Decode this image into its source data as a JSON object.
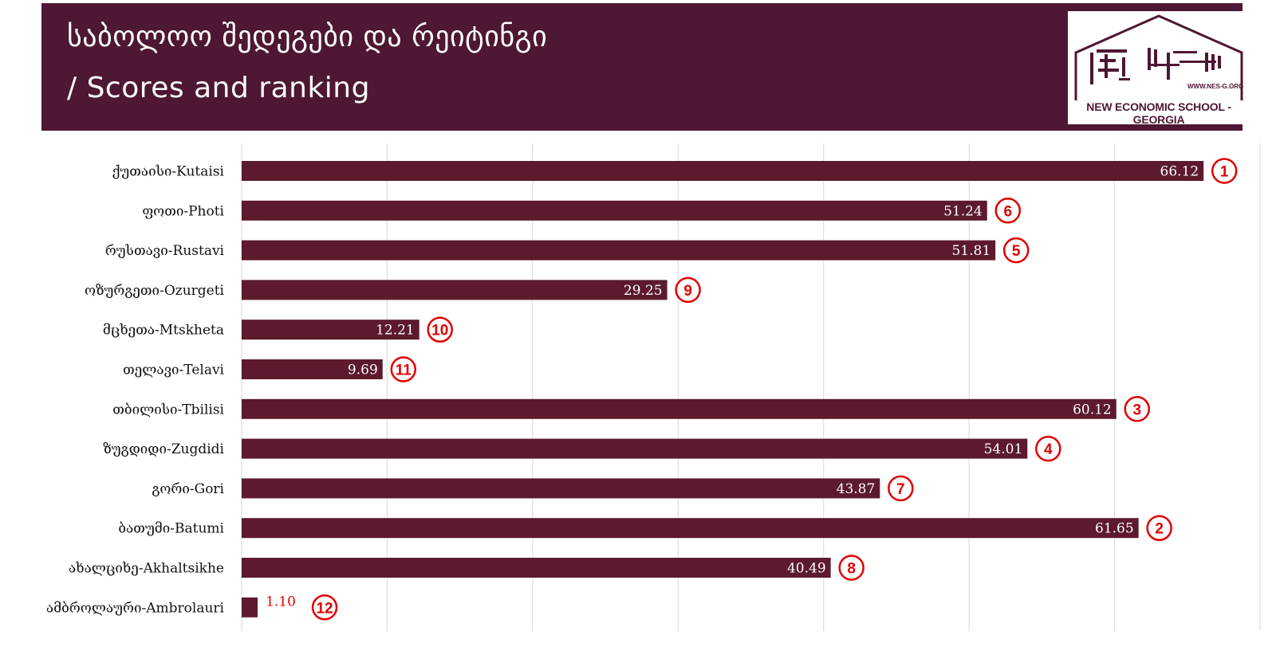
{
  "header": {
    "title_ka": "საბოლოო შედეგები და რეიტინგი",
    "title_en": "/ Scores and ranking",
    "logo_url": "WWW.NES-G.ORG",
    "logo_text": "NEW ECONOMIC SCHOOL - GEORGIA"
  },
  "colors": {
    "header_bg": "#4e1733",
    "bar": "#5c1a2c",
    "rank": "#e00000",
    "grid": "#d9d9d9"
  },
  "chart_data": {
    "type": "bar",
    "orientation": "horizontal",
    "categories": [
      "ქუთაისი-Kutaisi",
      "ფოთი-Photi",
      "რუსთავი-Rustavi",
      "ოზურგეთი-Ozurgeti",
      "მცხეთა-Mtskheta",
      "თელავი-Telavi",
      "თბილისი-Tbilisi",
      "ზუგდიდი-Zugdidi",
      "გორი-Gori",
      "ბათუმი-Batumi",
      "ახალციხე-Akhaltsikhe",
      "ამბროლაური-Ambrolauri"
    ],
    "values": [
      66.12,
      51.24,
      51.81,
      29.25,
      12.21,
      9.69,
      60.12,
      54.01,
      43.87,
      61.65,
      40.49,
      1.1
    ],
    "value_labels": [
      "66.12",
      "51.24",
      "51.81",
      "29.25",
      "12.21",
      "9.69",
      "60.12",
      "54.01",
      "43.87",
      "61.65",
      "40.49",
      "1.10"
    ],
    "ranks": [
      1,
      6,
      5,
      9,
      10,
      11,
      3,
      4,
      7,
      2,
      8,
      12
    ],
    "xlim": [
      0,
      70
    ],
    "grid": true,
    "title": "",
    "xlabel": "",
    "ylabel": ""
  }
}
